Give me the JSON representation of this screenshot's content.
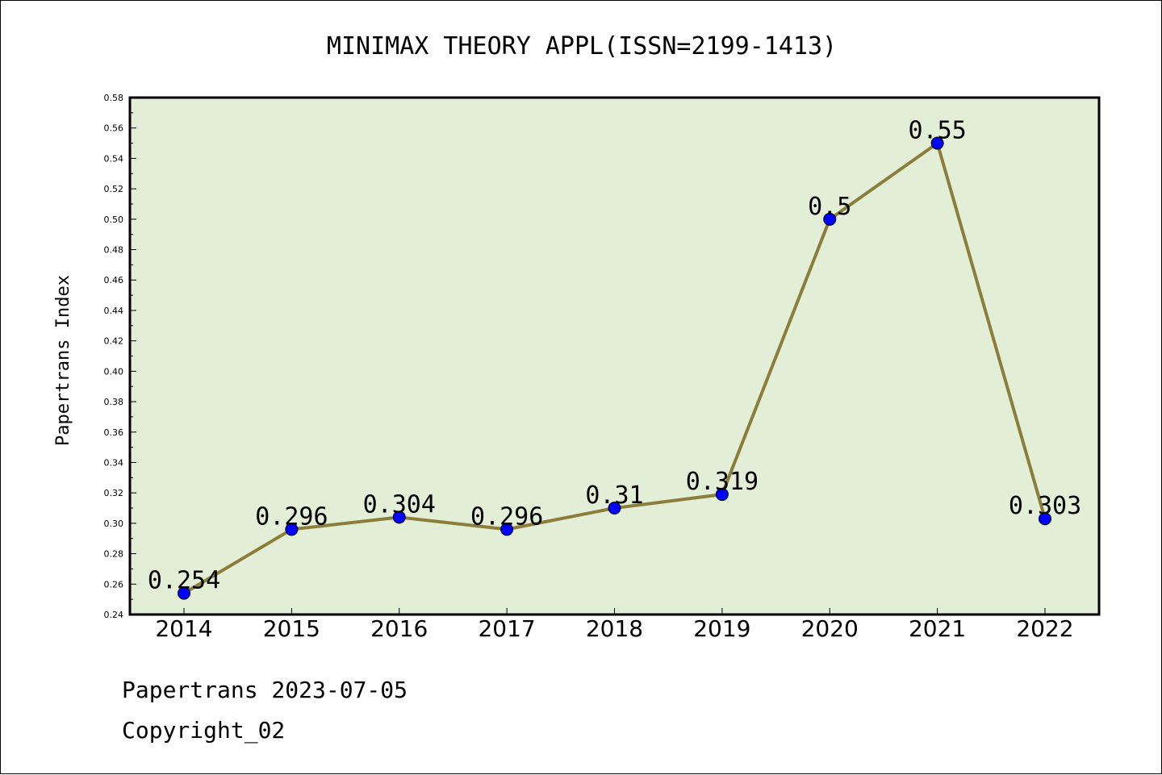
{
  "chart_data": {
    "type": "line",
    "title": "MINIMAX THEORY APPL(ISSN=2199-1413)",
    "ylabel": "Papertrans Index",
    "xlabel": "",
    "categories": [
      "2014",
      "2015",
      "2016",
      "2017",
      "2018",
      "2019",
      "2020",
      "2021",
      "2022"
    ],
    "series": [
      {
        "values": [
          0.254,
          0.296,
          0.304,
          0.296,
          0.31,
          0.319,
          0.5,
          0.55,
          0.303
        ],
        "labels": [
          "0.254",
          "0.296",
          "0.304",
          "0.296",
          "0.31",
          "0.319",
          "0.5",
          "0.55",
          "0.303"
        ]
      }
    ],
    "ylim": [
      0.24,
      0.58
    ],
    "yticks": [
      "0.24",
      "0.26",
      "0.28",
      "0.30",
      "0.32",
      "0.34",
      "0.36",
      "0.38",
      "0.40",
      "0.42",
      "0.44",
      "0.46",
      "0.48",
      "0.50",
      "0.52",
      "0.54",
      "0.56",
      "0.58"
    ],
    "grid": false,
    "legend": "none",
    "colors": {
      "plot_bg": "#e2efd6",
      "line": "#8b7d3a",
      "marker": "#0000ff"
    }
  },
  "footer": {
    "line1": "Papertrans 2023-07-05",
    "line2": "Copyright_02"
  }
}
